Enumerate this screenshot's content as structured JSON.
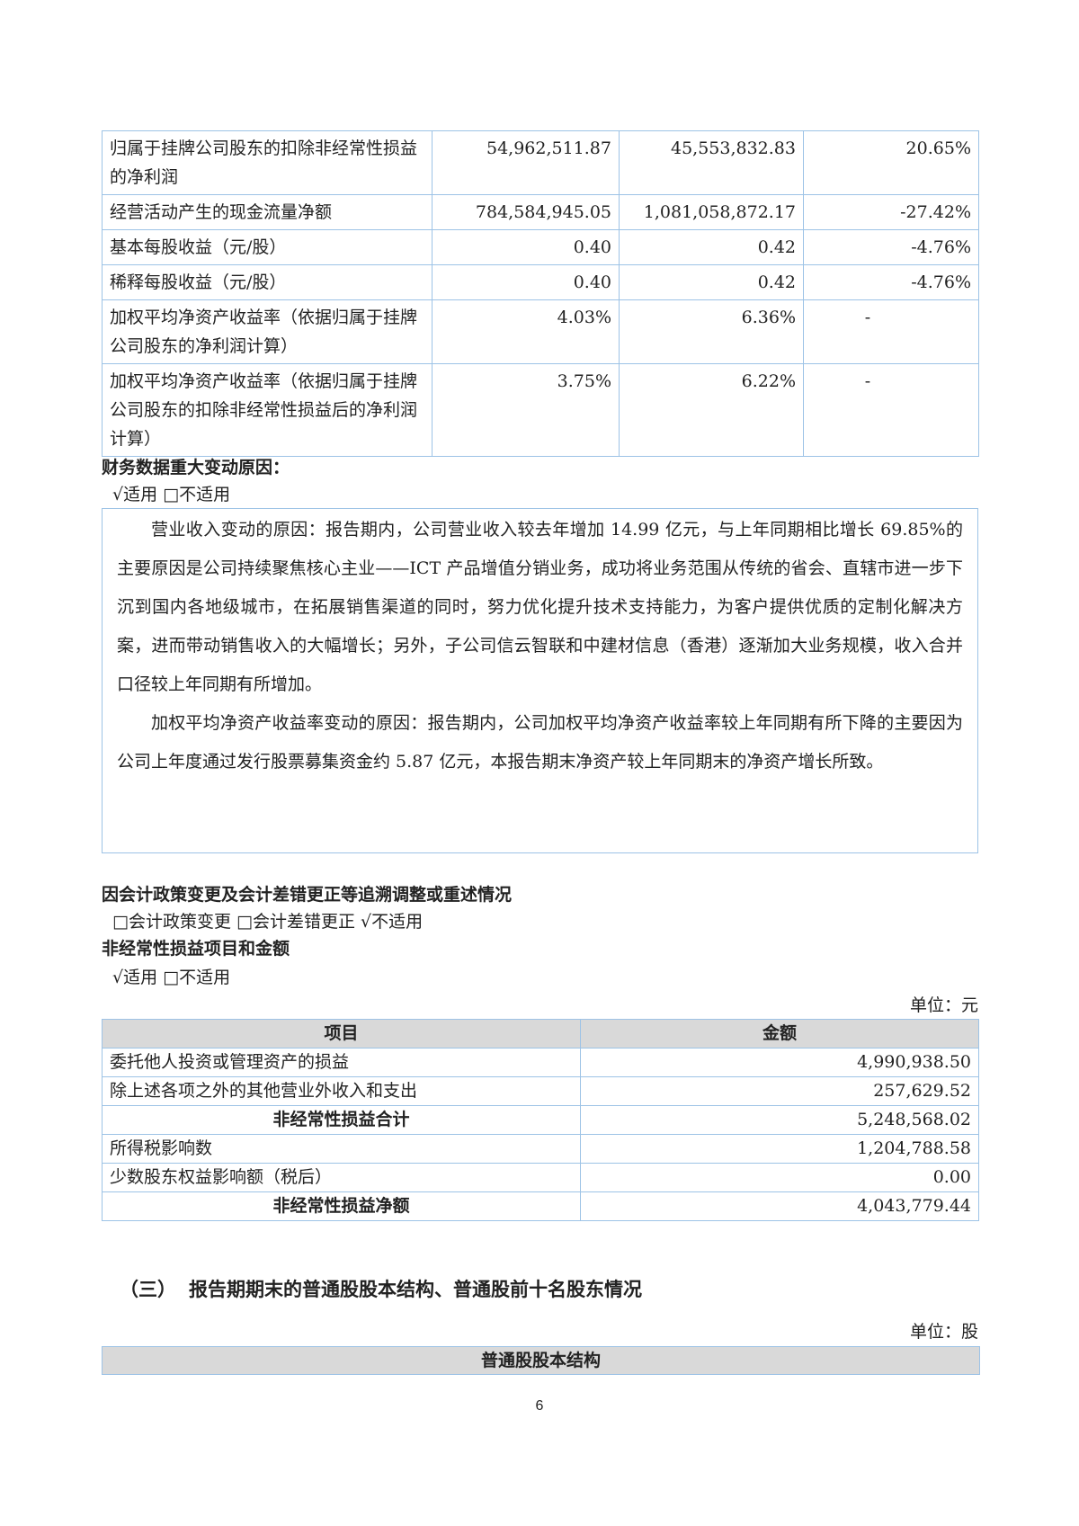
{
  "table1": {
    "rows": [
      {
        "label": "归属于挂牌公司股东的扣除非经常性损益的净利润",
        "current": "54,962,511.87",
        "previous": "45,553,832.83",
        "change": "20.65%"
      },
      {
        "label": "经营活动产生的现金流量净额",
        "current": "784,584,945.05",
        "previous": "1,081,058,872.17",
        "change": "-27.42%"
      },
      {
        "label": "基本每股收益（元/股）",
        "current": "0.40",
        "previous": "0.42",
        "change": "-4.76%"
      },
      {
        "label": "稀释每股收益（元/股）",
        "current": "0.40",
        "previous": "0.42",
        "change": "-4.76%"
      },
      {
        "label": "加权平均净资产收益率（依据归属于挂牌公司股东的净利润计算）",
        "current": "4.03%",
        "previous": "6.36%",
        "change": "-"
      },
      {
        "label": "加权平均净资产收益率（依据归属于挂牌公司股东的扣除非经常性损益后的净利润计算）",
        "current": "3.75%",
        "previous": "6.22%",
        "change": "-"
      }
    ]
  },
  "changes": {
    "heading": "财务数据重大变动原因：",
    "applicability": "√适用 □不适用",
    "paragraphs": [
      "营业收入变动的原因：报告期内，公司营业收入较去年增加 14.99 亿元，与上年同期相比增长 69.85%的主要原因是公司持续聚焦核心主业——ICT 产品增值分销业务，成功将业务范围从传统的省会、直辖市进一步下沉到国内各地级城市，在拓展销售渠道的同时，努力优化提升技术支持能力，为客户提供优质的定制化解决方案，进而带动销售收入的大幅增长；另外，子公司信云智联和中建材信息（香港）逐渐加大业务规模，收入合并口径较上年同期有所增加。",
      "加权平均净资产收益率变动的原因：报告期内，公司加权平均净资产收益率较上年同期有所下降的主要因为公司上年度通过发行股票募集资金约 5.87 亿元，本报告期末净资产较上年同期末的净资产增长所致。"
    ]
  },
  "restatement": {
    "heading": "因会计政策变更及会计差错更正等追溯调整或重述情况",
    "options": "□会计政策变更 □会计差错更正 √不适用"
  },
  "nonrecurring": {
    "heading": "非经常性损益项目和金额",
    "applicability": "√适用 □不适用",
    "unit": "单位：元",
    "columns": [
      "项目",
      "金额"
    ],
    "rows": [
      {
        "item": "委托他人投资或管理资产的损益",
        "amount": "4,990,938.50",
        "bold": false
      },
      {
        "item": "除上述各项之外的其他营业外收入和支出",
        "amount": "257,629.52",
        "bold": false
      },
      {
        "item": "非经常性损益合计",
        "amount": "5,248,568.02",
        "bold": true
      },
      {
        "item": "所得税影响数",
        "amount": "1,204,788.58",
        "bold": false
      },
      {
        "item": "少数股东权益影响额（税后）",
        "amount": "0.00",
        "bold": false
      },
      {
        "item": "非经常性损益净额",
        "amount": "4,043,779.44",
        "bold": true
      }
    ]
  },
  "section3": {
    "number": "（三）",
    "title": "报告期期末的普通股股本结构、普通股前十名股东情况",
    "unit": "单位：股",
    "table_header": "普通股股本结构"
  },
  "page_number": "6"
}
